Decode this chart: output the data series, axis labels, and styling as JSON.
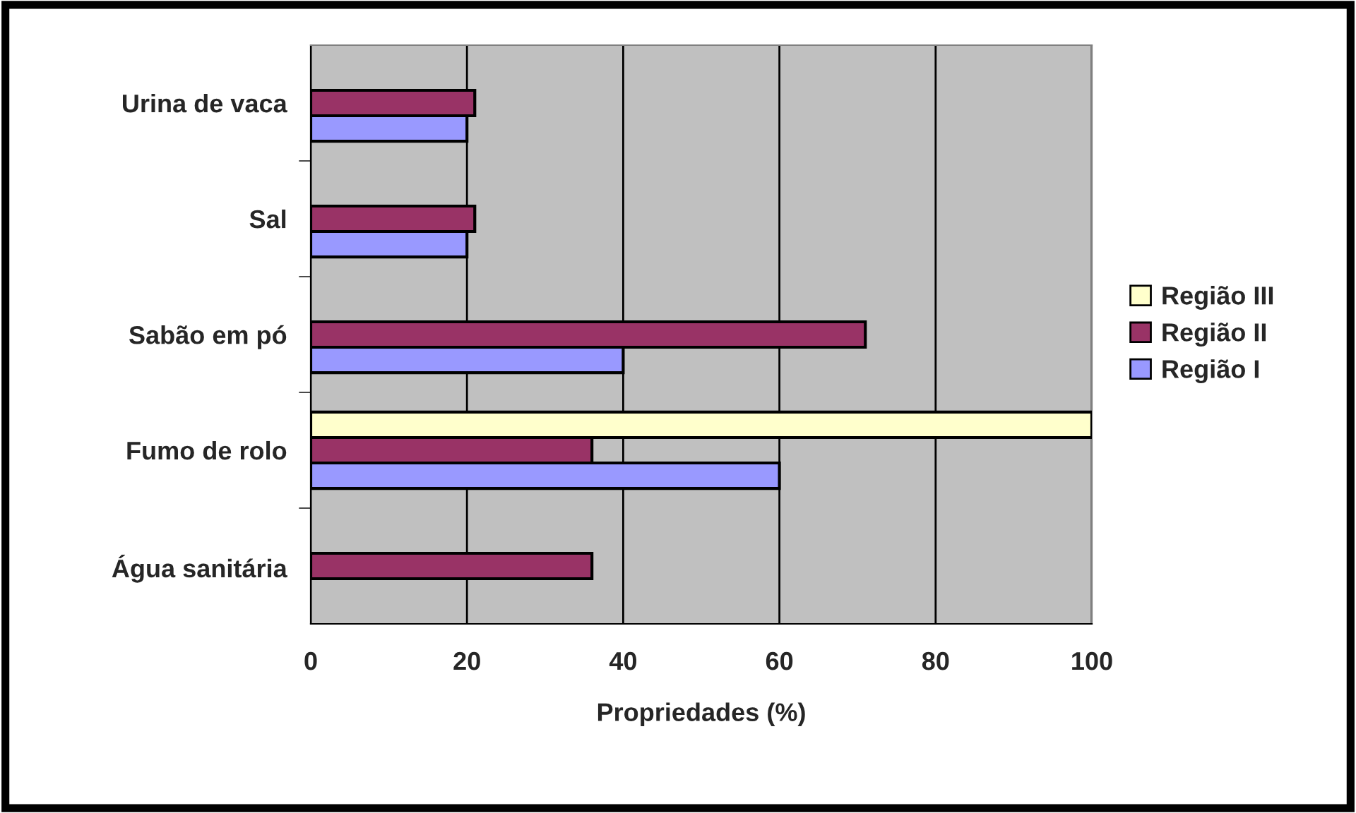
{
  "chart_data": {
    "type": "bar",
    "orientation": "horizontal",
    "xlabel": "Propriedades (%)",
    "categories": [
      "Urina de vaca",
      "Sal",
      "Sabão em pó",
      "Fumo de rolo",
      "Água sanitária"
    ],
    "series": [
      {
        "name": "Região I",
        "color": "#9999ff",
        "values": [
          20,
          20,
          40,
          60,
          null
        ]
      },
      {
        "name": "Região II",
        "color": "#993366",
        "values": [
          21,
          21,
          71,
          36,
          36
        ]
      },
      {
        "name": "Região III",
        "color": "#ffffcc",
        "values": [
          null,
          null,
          null,
          100,
          null
        ]
      }
    ],
    "xlim": [
      0,
      100
    ],
    "xticks": [
      0,
      20,
      40,
      60,
      80,
      100
    ],
    "grid": "x",
    "legend": "right"
  }
}
